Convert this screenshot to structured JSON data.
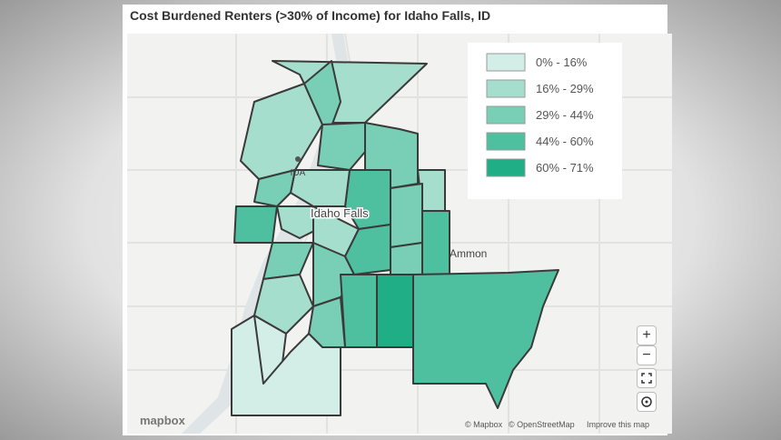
{
  "header": {
    "title": "Cost Burdened Renters (>30% of Income) for Idaho Falls, ID"
  },
  "legend": {
    "items": [
      {
        "label": "0% - 16%",
        "color": "#d3eee7"
      },
      {
        "label": "16% - 29%",
        "color": "#a6dece"
      },
      {
        "label": "29% - 44%",
        "color": "#79ceb6"
      },
      {
        "label": "44% - 60%",
        "color": "#4ebf9f"
      },
      {
        "label": "60% - 71%",
        "color": "#1fae86"
      }
    ]
  },
  "places": [
    "IDA",
    "Idaho Falls",
    "Ammon"
  ],
  "controls": {
    "zoom_in": "+",
    "zoom_out": "−"
  },
  "attribution": {
    "logo": "mapbox",
    "mapbox": "© Mapbox",
    "osm": "© OpenStreetMap",
    "improve": "Improve this map"
  }
}
